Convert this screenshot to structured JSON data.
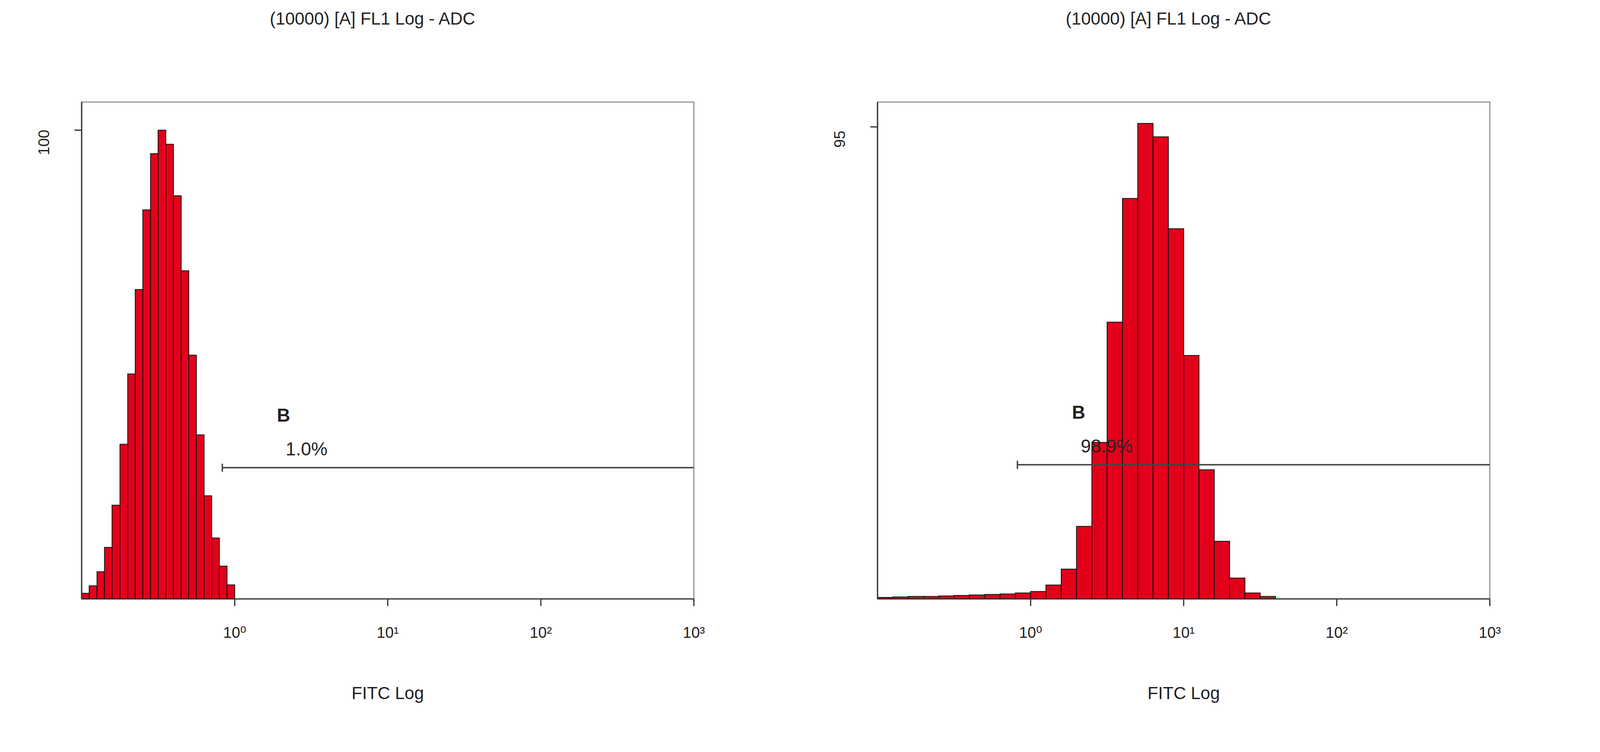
{
  "chart_data": [
    {
      "type": "histogram",
      "title": "(10000) [A] FL1 Log - ADC",
      "x_label": "FITC Log",
      "log": "x",
      "color": "#e3001b",
      "xlim": [
        0.1,
        1000
      ],
      "ylim": [
        0,
        106
      ],
      "xticks": [
        {
          "value": 1,
          "label": "10⁰"
        },
        {
          "value": 10,
          "label": "10¹"
        },
        {
          "value": 100,
          "label": "10²"
        },
        {
          "value": 1000,
          "label": "10³"
        }
      ],
      "yticks": [
        100
      ],
      "bins": [
        0.1,
        0.112,
        0.126,
        0.141,
        0.158,
        0.178,
        0.2,
        0.224,
        0.251,
        0.282,
        0.316,
        0.355,
        0.398,
        0.447,
        0.501,
        0.562,
        0.631,
        0.708,
        0.794,
        0.891,
        1.0
      ],
      "counts": [
        1.2,
        2.8,
        5.8,
        11,
        20,
        33,
        48,
        66,
        83,
        95,
        100,
        97,
        86,
        70,
        52,
        35,
        22,
        13,
        7,
        3
      ],
      "gate": {
        "name": "B",
        "x": [
          0.83,
          1000
        ],
        "y": 28,
        "percent": 1.0,
        "percent_label": "1.0%"
      }
    },
    {
      "type": "histogram",
      "title": "(10000) [A] FL1 Log - ADC",
      "x_label": "FITC Log",
      "log": "x",
      "color": "#e3001b",
      "xlim": [
        0.1,
        1000
      ],
      "ylim": [
        0,
        100
      ],
      "xticks": [
        {
          "value": 1,
          "label": "10⁰"
        },
        {
          "value": 10,
          "label": "10¹"
        },
        {
          "value": 100,
          "label": "10²"
        },
        {
          "value": 1000,
          "label": "10³"
        }
      ],
      "yticks": [
        95
      ],
      "bins": [
        0.1,
        0.126,
        0.158,
        0.2,
        0.251,
        0.316,
        0.398,
        0.501,
        0.631,
        0.794,
        1,
        1.259,
        1.585,
        1.995,
        2.512,
        3.162,
        3.981,
        5.012,
        6.31,
        7.943,
        10,
        12.589,
        15.849,
        19.953,
        25.119,
        31.623,
        39.811
      ],
      "counts": [
        0.3,
        0.4,
        0.5,
        0.5,
        0.6,
        0.7,
        0.8,
        0.9,
        1,
        1.2,
        1.5,
        2.8,
        6,
        14.6,
        31.5,
        55.7,
        80.6,
        95.7,
        93,
        74.5,
        49,
        26,
        11.6,
        4.2,
        1.2,
        0.5
      ],
      "gate": {
        "name": "B",
        "x": [
          0.82,
          1000
        ],
        "y": 27,
        "percent": 98.9,
        "percent_label": "98.9%"
      }
    }
  ]
}
